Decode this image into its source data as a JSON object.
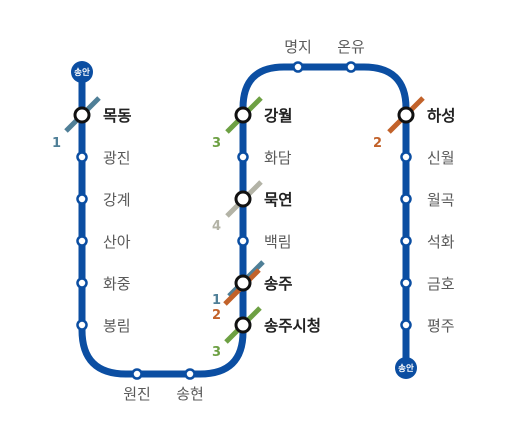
{
  "colors": {
    "main_line": "#0b4ea2",
    "line_1": "#4f7f97",
    "line_2": "#c2622a",
    "line_3": "#6da043",
    "line_4": "#b3b3a6"
  },
  "terminals": {
    "top": "송안",
    "bottom": "송안"
  },
  "stations": {
    "mokdong": "목동",
    "gwangjin": "광진",
    "gang_gye": "강계",
    "sana": "산아",
    "hwajung": "화중",
    "bongnim": "봉림",
    "wonjin": "원진",
    "songhyeon": "송현",
    "songju_sicheong": "송주시청",
    "songju": "송주",
    "baengnim": "백림",
    "mogyeon": "묵연",
    "hwadam": "화담",
    "gangwol": "강월",
    "myeongji": "명지",
    "onyu": "온유",
    "haseong": "하성",
    "sinwol": "신월",
    "wolgok": "월곡",
    "seokhwa": "석화",
    "geumho": "금호",
    "pyeongju": "평주"
  },
  "transfer_lines": {
    "mokdong": "1",
    "gangwol": "3",
    "mogyeon": "4",
    "songju_a": "1",
    "songju_b": "2",
    "songju_sicheong": "3",
    "haseong": "2"
  }
}
